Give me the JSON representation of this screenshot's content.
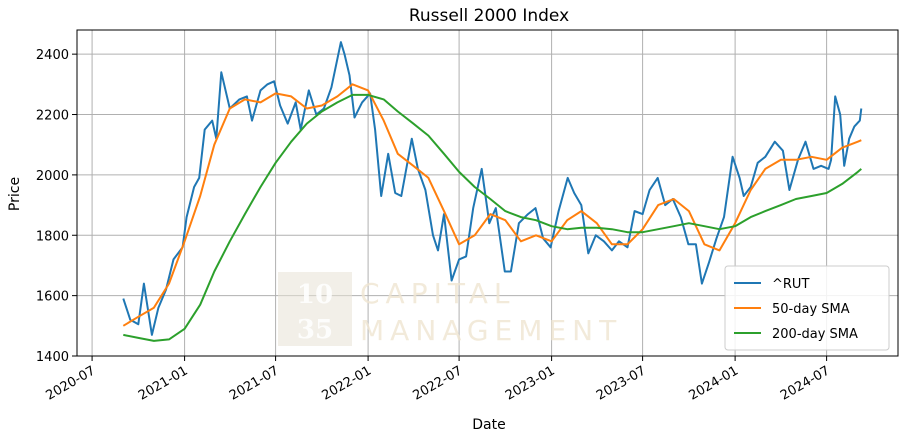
{
  "chart_data": {
    "type": "line",
    "title": "Russell 2000 Index",
    "xlabel": "Date",
    "ylabel": "Price",
    "ylim": [
      1400,
      2480
    ],
    "xlim": [
      "2020-06-01",
      "2024-11-20"
    ],
    "grid": true,
    "legend_position": "lower-right",
    "x_ticks": [
      "2020-07-01",
      "2021-01-01",
      "2021-07-01",
      "2022-01-01",
      "2022-07-01",
      "2023-01-01",
      "2023-07-01",
      "2024-01-01",
      "2024-07-01"
    ],
    "x_tick_labels": [
      "2020-07",
      "2021-01",
      "2021-07",
      "2022-01",
      "2022-07",
      "2023-01",
      "2023-07",
      "2024-01",
      "2024-07"
    ],
    "y_ticks": [
      1400,
      1600,
      1800,
      2000,
      2200,
      2400
    ],
    "y_tick_labels": [
      "1400",
      "1600",
      "1800",
      "2000",
      "2200",
      "2400"
    ],
    "series": [
      {
        "name": "^RUT",
        "color": "#1f77b4",
        "points": [
          [
            "2020-09-01",
            1590
          ],
          [
            "2020-09-15",
            1520
          ],
          [
            "2020-10-01",
            1505
          ],
          [
            "2020-10-12",
            1640
          ],
          [
            "2020-10-28",
            1470
          ],
          [
            "2020-11-10",
            1560
          ],
          [
            "2020-11-25",
            1620
          ],
          [
            "2020-12-10",
            1720
          ],
          [
            "2020-12-28",
            1760
          ],
          [
            "2021-01-05",
            1860
          ],
          [
            "2021-01-20",
            1960
          ],
          [
            "2021-01-30",
            1990
          ],
          [
            "2021-02-10",
            2150
          ],
          [
            "2021-02-25",
            2180
          ],
          [
            "2021-03-05",
            2120
          ],
          [
            "2021-03-15",
            2340
          ],
          [
            "2021-04-01",
            2220
          ],
          [
            "2021-04-20",
            2250
          ],
          [
            "2021-05-05",
            2260
          ],
          [
            "2021-05-15",
            2180
          ],
          [
            "2021-06-01",
            2280
          ],
          [
            "2021-06-15",
            2300
          ],
          [
            "2021-06-28",
            2310
          ],
          [
            "2021-07-10",
            2230
          ],
          [
            "2021-07-25",
            2170
          ],
          [
            "2021-08-10",
            2240
          ],
          [
            "2021-08-20",
            2150
          ],
          [
            "2021-09-05",
            2280
          ],
          [
            "2021-09-20",
            2200
          ],
          [
            "2021-10-05",
            2220
          ],
          [
            "2021-10-20",
            2290
          ],
          [
            "2021-11-08",
            2440
          ],
          [
            "2021-11-15",
            2400
          ],
          [
            "2021-11-25",
            2330
          ],
          [
            "2021-12-05",
            2190
          ],
          [
            "2021-12-20",
            2240
          ],
          [
            "2022-01-05",
            2270
          ],
          [
            "2022-01-15",
            2150
          ],
          [
            "2022-01-27",
            1930
          ],
          [
            "2022-02-10",
            2070
          ],
          [
            "2022-02-24",
            1940
          ],
          [
            "2022-03-08",
            1930
          ],
          [
            "2022-03-29",
            2120
          ],
          [
            "2022-04-10",
            2020
          ],
          [
            "2022-04-25",
            1950
          ],
          [
            "2022-05-10",
            1800
          ],
          [
            "2022-05-20",
            1750
          ],
          [
            "2022-06-01",
            1870
          ],
          [
            "2022-06-16",
            1650
          ],
          [
            "2022-07-01",
            1720
          ],
          [
            "2022-07-15",
            1730
          ],
          [
            "2022-07-29",
            1890
          ],
          [
            "2022-08-15",
            2020
          ],
          [
            "2022-08-30",
            1840
          ],
          [
            "2022-09-12",
            1890
          ],
          [
            "2022-09-30",
            1680
          ],
          [
            "2022-10-12",
            1680
          ],
          [
            "2022-10-28",
            1840
          ],
          [
            "2022-11-15",
            1870
          ],
          [
            "2022-11-30",
            1890
          ],
          [
            "2022-12-15",
            1790
          ],
          [
            "2022-12-30",
            1760
          ],
          [
            "2023-01-15",
            1880
          ],
          [
            "2023-02-02",
            1990
          ],
          [
            "2023-02-15",
            1940
          ],
          [
            "2023-03-01",
            1900
          ],
          [
            "2023-03-15",
            1740
          ],
          [
            "2023-03-30",
            1800
          ],
          [
            "2023-04-15",
            1780
          ],
          [
            "2023-05-01",
            1750
          ],
          [
            "2023-05-15",
            1780
          ],
          [
            "2023-06-01",
            1760
          ],
          [
            "2023-06-15",
            1880
          ],
          [
            "2023-07-01",
            1870
          ],
          [
            "2023-07-15",
            1950
          ],
          [
            "2023-07-31",
            1990
          ],
          [
            "2023-08-15",
            1900
          ],
          [
            "2023-08-30",
            1920
          ],
          [
            "2023-09-15",
            1860
          ],
          [
            "2023-09-30",
            1770
          ],
          [
            "2023-10-15",
            1770
          ],
          [
            "2023-10-27",
            1640
          ],
          [
            "2023-11-10",
            1710
          ],
          [
            "2023-11-25",
            1790
          ],
          [
            "2023-12-10",
            1860
          ],
          [
            "2023-12-27",
            2060
          ],
          [
            "2024-01-10",
            1990
          ],
          [
            "2024-01-18",
            1930
          ],
          [
            "2024-02-01",
            1960
          ],
          [
            "2024-02-15",
            2040
          ],
          [
            "2024-03-01",
            2060
          ],
          [
            "2024-03-20",
            2110
          ],
          [
            "2024-04-05",
            2080
          ],
          [
            "2024-04-18",
            1950
          ],
          [
            "2024-05-05",
            2050
          ],
          [
            "2024-05-20",
            2110
          ],
          [
            "2024-06-05",
            2020
          ],
          [
            "2024-06-20",
            2030
          ],
          [
            "2024-07-05",
            2020
          ],
          [
            "2024-07-10",
            2050
          ],
          [
            "2024-07-18",
            2260
          ],
          [
            "2024-07-28",
            2200
          ],
          [
            "2024-08-05",
            2030
          ],
          [
            "2024-08-15",
            2120
          ],
          [
            "2024-08-25",
            2160
          ],
          [
            "2024-09-05",
            2180
          ],
          [
            "2024-09-08",
            2220
          ]
        ]
      },
      {
        "name": "50-day SMA",
        "color": "#ff7f0e",
        "points": [
          [
            "2020-09-01",
            1500
          ],
          [
            "2020-10-01",
            1530
          ],
          [
            "2020-11-01",
            1560
          ],
          [
            "2020-12-01",
            1640
          ],
          [
            "2021-01-01",
            1780
          ],
          [
            "2021-02-01",
            1930
          ],
          [
            "2021-03-01",
            2100
          ],
          [
            "2021-04-01",
            2220
          ],
          [
            "2021-05-01",
            2250
          ],
          [
            "2021-06-01",
            2240
          ],
          [
            "2021-07-01",
            2270
          ],
          [
            "2021-08-01",
            2260
          ],
          [
            "2021-09-01",
            2220
          ],
          [
            "2021-10-01",
            2230
          ],
          [
            "2021-11-01",
            2260
          ],
          [
            "2021-12-01",
            2300
          ],
          [
            "2022-01-01",
            2280
          ],
          [
            "2022-02-01",
            2180
          ],
          [
            "2022-03-01",
            2070
          ],
          [
            "2022-04-01",
            2030
          ],
          [
            "2022-05-01",
            1990
          ],
          [
            "2022-06-01",
            1880
          ],
          [
            "2022-07-01",
            1770
          ],
          [
            "2022-08-01",
            1800
          ],
          [
            "2022-09-01",
            1870
          ],
          [
            "2022-10-01",
            1850
          ],
          [
            "2022-11-01",
            1780
          ],
          [
            "2022-12-01",
            1800
          ],
          [
            "2023-01-01",
            1780
          ],
          [
            "2023-02-01",
            1850
          ],
          [
            "2023-03-01",
            1880
          ],
          [
            "2023-04-01",
            1840
          ],
          [
            "2023-05-01",
            1770
          ],
          [
            "2023-06-01",
            1770
          ],
          [
            "2023-07-01",
            1820
          ],
          [
            "2023-08-01",
            1900
          ],
          [
            "2023-09-01",
            1920
          ],
          [
            "2023-10-01",
            1880
          ],
          [
            "2023-11-01",
            1770
          ],
          [
            "2023-12-01",
            1750
          ],
          [
            "2024-01-01",
            1840
          ],
          [
            "2024-02-01",
            1950
          ],
          [
            "2024-03-01",
            2020
          ],
          [
            "2024-04-01",
            2050
          ],
          [
            "2024-05-01",
            2050
          ],
          [
            "2024-06-01",
            2060
          ],
          [
            "2024-07-01",
            2050
          ],
          [
            "2024-08-01",
            2090
          ],
          [
            "2024-09-01",
            2110
          ],
          [
            "2024-09-08",
            2115
          ]
        ]
      },
      {
        "name": "200-day SMA",
        "color": "#2ca02c",
        "points": [
          [
            "2020-09-01",
            1470
          ],
          [
            "2020-10-01",
            1460
          ],
          [
            "2020-11-01",
            1450
          ],
          [
            "2020-12-01",
            1455
          ],
          [
            "2021-01-01",
            1490
          ],
          [
            "2021-02-01",
            1570
          ],
          [
            "2021-03-01",
            1680
          ],
          [
            "2021-04-01",
            1780
          ],
          [
            "2021-05-01",
            1870
          ],
          [
            "2021-06-01",
            1960
          ],
          [
            "2021-07-01",
            2040
          ],
          [
            "2021-08-01",
            2110
          ],
          [
            "2021-09-01",
            2170
          ],
          [
            "2021-10-01",
            2210
          ],
          [
            "2021-11-01",
            2240
          ],
          [
            "2021-12-01",
            2265
          ],
          [
            "2022-01-01",
            2265
          ],
          [
            "2022-02-01",
            2250
          ],
          [
            "2022-03-01",
            2210
          ],
          [
            "2022-04-01",
            2170
          ],
          [
            "2022-05-01",
            2130
          ],
          [
            "2022-06-01",
            2070
          ],
          [
            "2022-07-01",
            2010
          ],
          [
            "2022-08-01",
            1960
          ],
          [
            "2022-09-01",
            1920
          ],
          [
            "2022-10-01",
            1880
          ],
          [
            "2022-11-01",
            1860
          ],
          [
            "2022-12-01",
            1850
          ],
          [
            "2023-01-01",
            1830
          ],
          [
            "2023-02-01",
            1820
          ],
          [
            "2023-03-01",
            1825
          ],
          [
            "2023-04-01",
            1825
          ],
          [
            "2023-05-01",
            1820
          ],
          [
            "2023-06-01",
            1810
          ],
          [
            "2023-07-01",
            1810
          ],
          [
            "2023-08-01",
            1820
          ],
          [
            "2023-09-01",
            1830
          ],
          [
            "2023-10-01",
            1840
          ],
          [
            "2023-11-01",
            1830
          ],
          [
            "2023-12-01",
            1820
          ],
          [
            "2024-01-01",
            1830
          ],
          [
            "2024-02-01",
            1860
          ],
          [
            "2024-03-01",
            1880
          ],
          [
            "2024-04-01",
            1900
          ],
          [
            "2024-05-01",
            1920
          ],
          [
            "2024-06-01",
            1930
          ],
          [
            "2024-07-01",
            1940
          ],
          [
            "2024-08-01",
            1970
          ],
          [
            "2024-09-01",
            2010
          ],
          [
            "2024-09-08",
            2020
          ]
        ]
      }
    ],
    "legend": [
      {
        "label": "^RUT",
        "color": "#1f77b4"
      },
      {
        "label": "50-day SMA",
        "color": "#ff7f0e"
      },
      {
        "label": "200-day SMA",
        "color": "#2ca02c"
      }
    ]
  },
  "watermark": {
    "logo_top": "10",
    "logo_bottom": "35",
    "line1": "CAPITAL",
    "line2": "MANAGEMENT"
  }
}
